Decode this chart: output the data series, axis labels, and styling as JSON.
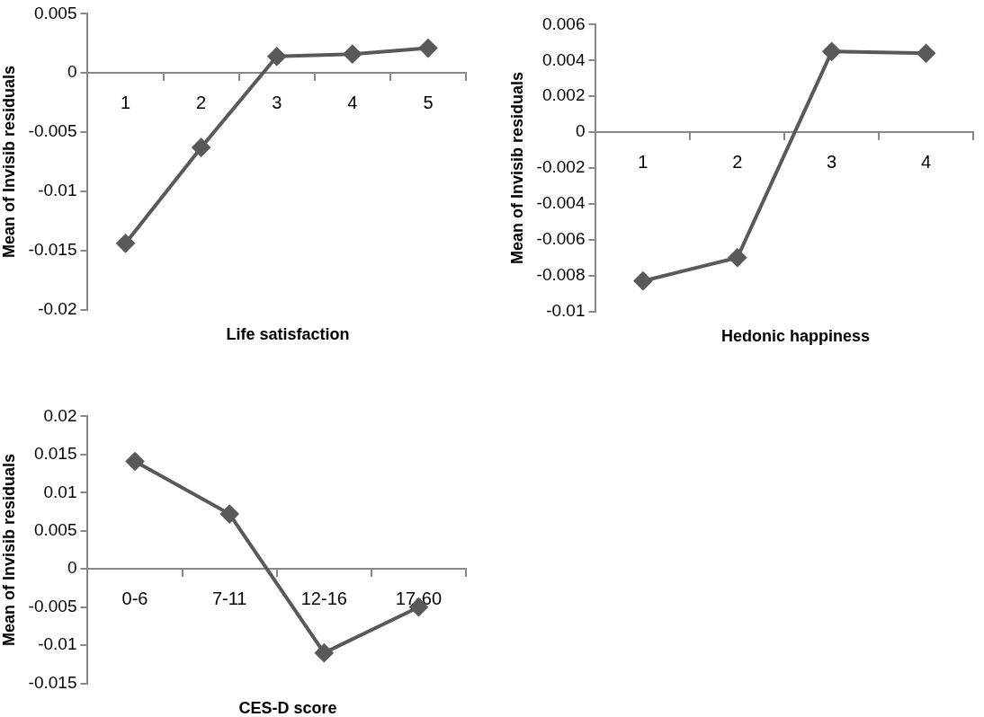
{
  "chart_data": [
    {
      "type": "line",
      "categories": [
        "1",
        "2",
        "3",
        "4",
        "5"
      ],
      "xlabel": "Life satisfaction",
      "ylabel": "Mean of Invisib residuals",
      "ylim": [
        -0.02,
        0.005
      ],
      "yticks": [
        -0.02,
        -0.015,
        -0.01,
        -0.005,
        0,
        0.005
      ],
      "grid": false,
      "legend": false,
      "marker": "diamond",
      "series": [
        {
          "color": "#595959",
          "values": [
            -0.0144,
            -0.0063,
            0.0014,
            0.0016,
            0.0021
          ]
        }
      ]
    },
    {
      "type": "line",
      "categories": [
        "1",
        "2",
        "3",
        "4"
      ],
      "xlabel": "Hedonic happiness",
      "ylabel": "Mean of Invisib residuals",
      "ylim": [
        -0.01,
        0.006
      ],
      "yticks": [
        -0.01,
        -0.008,
        -0.006,
        -0.004,
        -0.002,
        0,
        0.002,
        0.004,
        0.006
      ],
      "grid": false,
      "legend": false,
      "marker": "diamond",
      "series": [
        {
          "color": "#595959",
          "values": [
            -0.0083,
            -0.007,
            0.0045,
            0.0044
          ]
        }
      ]
    },
    {
      "type": "line",
      "categories": [
        "0-6",
        "7-11",
        "12-16",
        "17-60"
      ],
      "xlabel": "CES-D score",
      "ylabel": "Mean of Invisib residuals",
      "ylim": [
        -0.015,
        0.02
      ],
      "yticks": [
        -0.015,
        -0.01,
        -0.005,
        0,
        0.005,
        0.01,
        0.015,
        0.02
      ],
      "grid": false,
      "legend": false,
      "marker": "diamond",
      "series": [
        {
          "color": "#595959",
          "values": [
            0.0141,
            0.0072,
            -0.011,
            -0.005
          ]
        }
      ]
    }
  ]
}
